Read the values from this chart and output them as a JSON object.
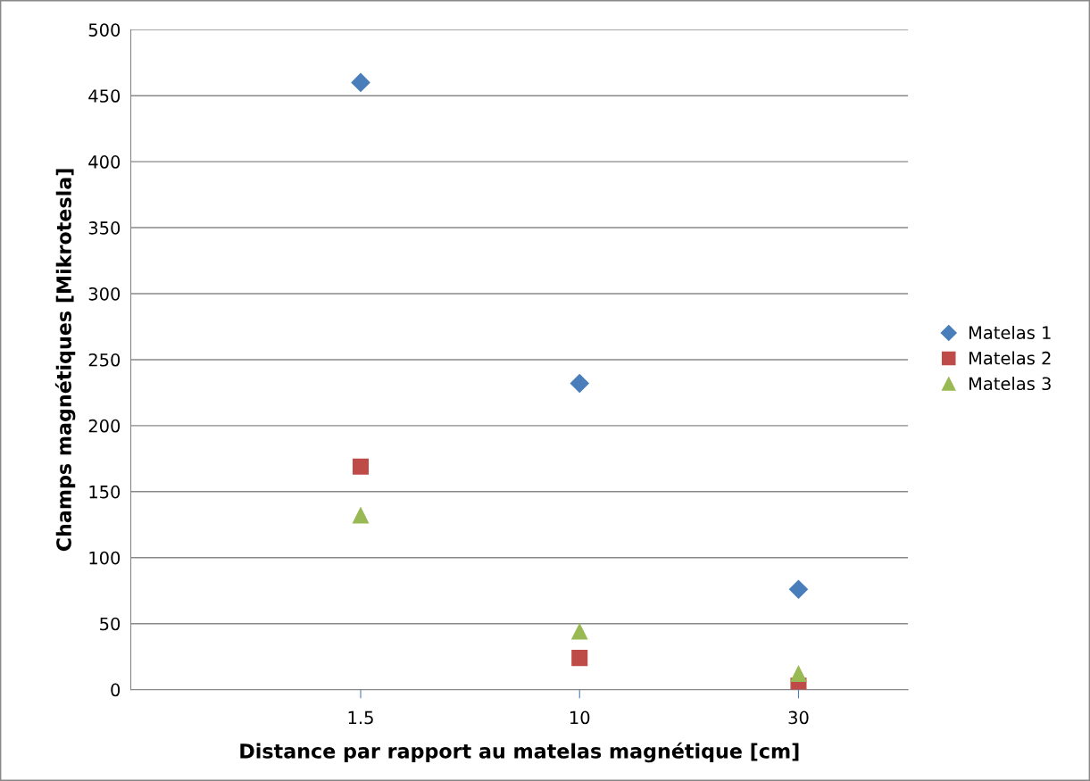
{
  "chart_data": {
    "type": "scatter",
    "xlabel": "Distance par rapport au matelas magnétique [cm]",
    "ylabel": "Champs magnétiques [Mikrotesla]",
    "categories": [
      "1.5",
      "10",
      "30"
    ],
    "series": [
      {
        "name": "Matelas 1",
        "color": "#4a7ebb",
        "marker": "diamond",
        "values": [
          460,
          232,
          76
        ]
      },
      {
        "name": "Matelas 2",
        "color": "#be4b48",
        "marker": "square",
        "values": [
          169,
          24,
          3
        ]
      },
      {
        "name": "Matelas 3",
        "color": "#98b954",
        "marker": "triangle",
        "values": [
          132,
          44,
          12
        ]
      }
    ],
    "ylim": [
      0,
      500
    ],
    "yticks": [
      0,
      50,
      100,
      150,
      200,
      250,
      300,
      350,
      400,
      450,
      500
    ],
    "grid": "y",
    "legend": "right"
  }
}
